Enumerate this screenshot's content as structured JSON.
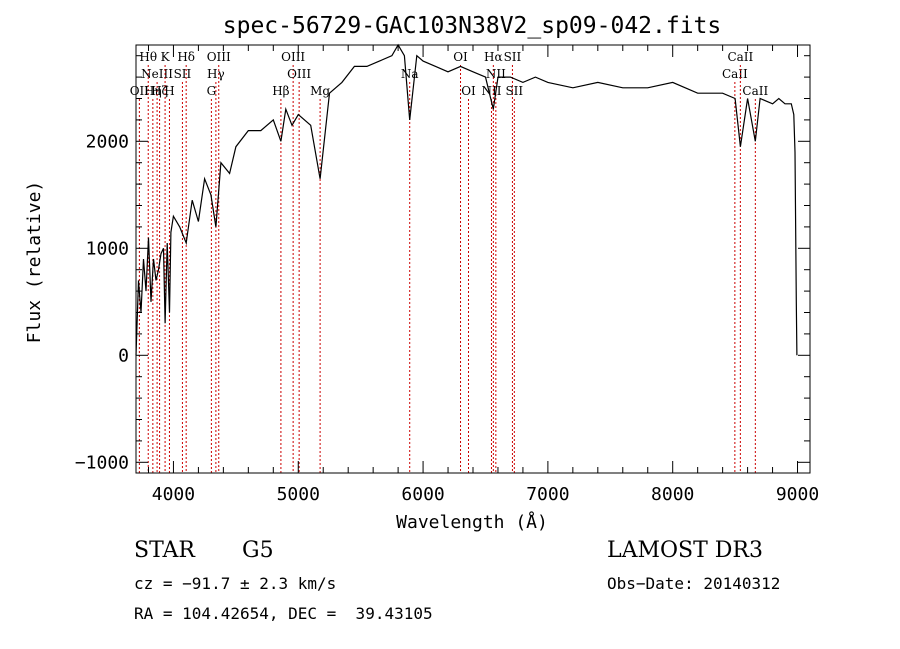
{
  "chart_data": {
    "type": "line",
    "title": "spec-56729-GAC103N38V2_sp09-042.fits",
    "xlabel": "Wavelength (Å)",
    "ylabel": "Flux (relative)",
    "xlim": [
      3700,
      9100
    ],
    "ylim": [
      -1100,
      2900
    ],
    "xticks": [
      4000,
      5000,
      6000,
      7000,
      8000,
      9000
    ],
    "xtick_labels": [
      "4000",
      "5000",
      "6000",
      "7000",
      "8000",
      "9000"
    ],
    "yticks": [
      -1000,
      0,
      1000,
      2000
    ],
    "ytick_labels": [
      "−1000",
      "0",
      "1000",
      "2000"
    ],
    "grid": false,
    "series": [
      {
        "name": "spectrum",
        "x": [
          3700,
          3720,
          3740,
          3760,
          3780,
          3800,
          3820,
          3840,
          3860,
          3880,
          3900,
          3920,
          3933,
          3950,
          3968,
          3980,
          4000,
          4050,
          4102,
          4150,
          4200,
          4250,
          4300,
          4340,
          4380,
          4450,
          4500,
          4600,
          4700,
          4800,
          4861,
          4900,
          4950,
          5000,
          5100,
          5175,
          5250,
          5350,
          5450,
          5550,
          5650,
          5750,
          5800,
          5850,
          5893,
          5950,
          6000,
          6100,
          6200,
          6300,
          6400,
          6500,
          6563,
          6600,
          6700,
          6800,
          6900,
          7000,
          7200,
          7400,
          7600,
          7800,
          8000,
          8200,
          8400,
          8500,
          8542,
          8600,
          8662,
          8700,
          8800,
          8850,
          8900,
          8950,
          8970,
          8980,
          8990,
          8995
        ],
        "values": [
          0,
          700,
          400,
          900,
          600,
          1100,
          500,
          900,
          700,
          800,
          950,
          1000,
          300,
          1050,
          400,
          1150,
          1300,
          1200,
          1050,
          1450,
          1250,
          1650,
          1500,
          1200,
          1800,
          1700,
          1950,
          2100,
          2100,
          2200,
          2000,
          2300,
          2150,
          2250,
          2150,
          1650,
          2450,
          2550,
          2700,
          2700,
          2750,
          2800,
          2900,
          2800,
          2200,
          2800,
          2750,
          2700,
          2650,
          2700,
          2650,
          2600,
          2300,
          2600,
          2600,
          2550,
          2600,
          2550,
          2500,
          2550,
          2500,
          2500,
          2550,
          2450,
          2450,
          2400,
          1950,
          2400,
          2000,
          2400,
          2350,
          2400,
          2350,
          2350,
          2250,
          1900,
          500,
          0
        ]
      }
    ],
    "lines": [
      {
        "wl": 3727,
        "labels": [
          "OII"
        ],
        "row": 3
      },
      {
        "wl": 3798,
        "labels": [
          "Hθ"
        ],
        "row": 1
      },
      {
        "wl": 3835,
        "labels": [
          "Hη"
        ],
        "row": 3
      },
      {
        "wl": 3869,
        "labels": [
          "NeIII"
        ],
        "row": 2
      },
      {
        "wl": 3889,
        "labels": [
          "Hζ"
        ],
        "row": 3
      },
      {
        "wl": 3933,
        "labels": [
          "K"
        ],
        "row": 1
      },
      {
        "wl": 3968,
        "labels": [
          "H"
        ],
        "row": 3
      },
      {
        "wl": 4072,
        "labels": [
          "SII"
        ],
        "row": 2
      },
      {
        "wl": 4102,
        "labels": [
          "Hδ"
        ],
        "row": 1
      },
      {
        "wl": 4304,
        "labels": [
          "G"
        ],
        "row": 3
      },
      {
        "wl": 4340,
        "labels": [
          "Hγ"
        ],
        "row": 2
      },
      {
        "wl": 4363,
        "labels": [
          "OIII"
        ],
        "row": 1
      },
      {
        "wl": 4861,
        "labels": [
          "Hβ"
        ],
        "row": 3
      },
      {
        "wl": 4959,
        "labels": [
          "OIII"
        ],
        "row": 1
      },
      {
        "wl": 5007,
        "labels": [
          "OIII"
        ],
        "row": 2
      },
      {
        "wl": 5175,
        "labels": [
          "Mg"
        ],
        "row": 3
      },
      {
        "wl": 5893,
        "labels": [
          "Na"
        ],
        "row": 2
      },
      {
        "wl": 6300,
        "labels": [
          "OI"
        ],
        "row": 1
      },
      {
        "wl": 6364,
        "labels": [
          "OI"
        ],
        "row": 3
      },
      {
        "wl": 6548,
        "labels": [
          "NII"
        ],
        "row": 3
      },
      {
        "wl": 6563,
        "labels": [
          "Hα"
        ],
        "row": 1
      },
      {
        "wl": 6583,
        "labels": [
          "NII"
        ],
        "row": 2
      },
      {
        "wl": 6716,
        "labels": [
          "SII"
        ],
        "row": 1
      },
      {
        "wl": 6731,
        "labels": [
          "SII"
        ],
        "row": 3
      },
      {
        "wl": 8498,
        "labels": [
          "CaII"
        ],
        "row": 2
      },
      {
        "wl": 8542,
        "labels": [
          "CaII"
        ],
        "row": 1
      },
      {
        "wl": 8662,
        "labels": [
          "CaII"
        ],
        "row": 3
      }
    ]
  },
  "info": {
    "object_class": "STAR",
    "subclass": "G5",
    "survey": "LAMOST DR3",
    "redshift": "cz = −91.7 ± 2.3 km/s",
    "obs_date": "Obs−Date: 20140312",
    "coords": "RA = 104.42654, DEC =  39.43105"
  }
}
